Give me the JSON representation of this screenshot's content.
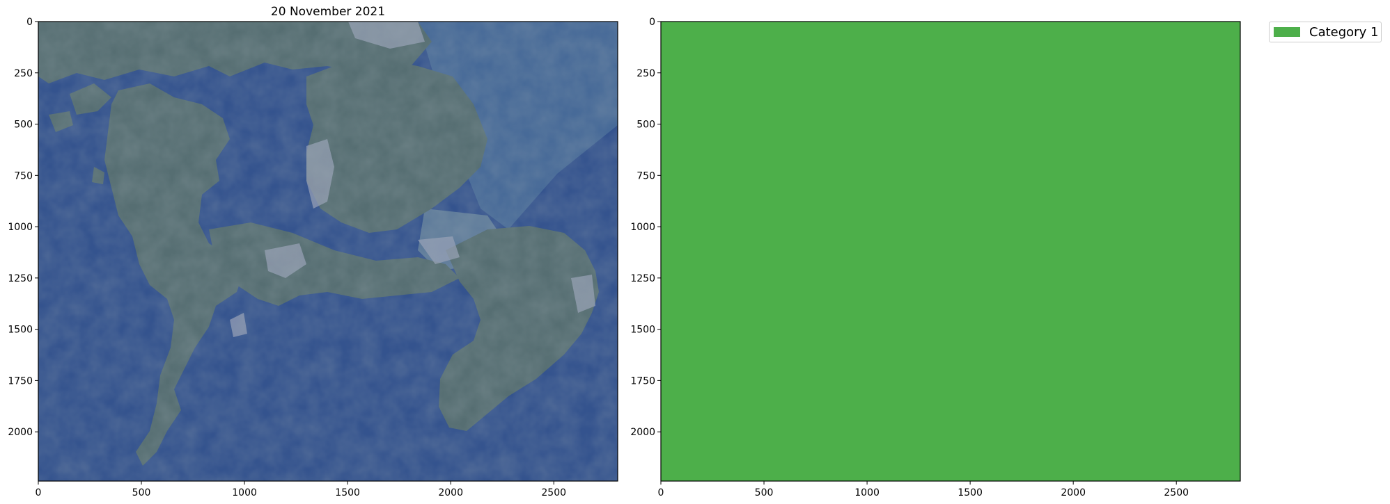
{
  "left_panel": {
    "title": "20 November 2021",
    "x_ticks": [
      "0",
      "500",
      "1000",
      "1500",
      "2000",
      "2500"
    ],
    "y_ticks": [
      "0",
      "250",
      "500",
      "750",
      "1000",
      "1250",
      "1500",
      "1750",
      "2000"
    ],
    "content": "satellite-image",
    "colors": {
      "sea": "#34538e",
      "land": "#566e72",
      "urban": "#9aa2b8"
    }
  },
  "right_panel": {
    "x_ticks": [
      "0",
      "500",
      "1000",
      "1500",
      "2000",
      "2500"
    ],
    "y_ticks": [
      "0",
      "250",
      "500",
      "750",
      "1000",
      "1250",
      "1500",
      "1750",
      "2000"
    ],
    "fill_color": "#4daf4a"
  },
  "legend": {
    "placement": "upper-right, outside axes",
    "entries": [
      {
        "label": "Category 1",
        "color": "#4daf4a"
      }
    ]
  },
  "chart_data": {
    "type": "heatmap",
    "xlim": [
      0,
      2810
    ],
    "ylim": [
      2240,
      0
    ],
    "panels": [
      {
        "name": "satellite",
        "title": "20 November 2021"
      },
      {
        "name": "classification",
        "categories": [
          "Category 1"
        ],
        "coverage": {
          "Category 1": 1.0
        }
      }
    ]
  }
}
